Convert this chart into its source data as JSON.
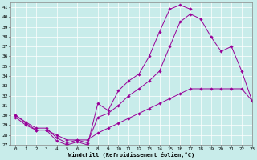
{
  "bg_color": "#c8ecea",
  "line_color": "#990099",
  "grid_color": "#ffffff",
  "xlabel": "Windchill (Refroidissement éolien,°C)",
  "ylim": [
    27,
    41.5
  ],
  "xlim": [
    -0.5,
    23
  ],
  "yticks": [
    27,
    28,
    29,
    30,
    31,
    32,
    33,
    34,
    35,
    36,
    37,
    38,
    39,
    40,
    41
  ],
  "xticks": [
    0,
    1,
    2,
    3,
    4,
    5,
    6,
    7,
    8,
    9,
    10,
    11,
    12,
    13,
    14,
    15,
    16,
    17,
    18,
    19,
    20,
    21,
    22,
    23
  ],
  "line1_x": [
    0,
    1,
    2,
    3,
    4,
    5,
    6,
    7,
    8,
    9,
    10,
    11,
    12,
    13,
    14,
    15,
    16,
    17
  ],
  "line1_y": [
    30.0,
    29.2,
    28.5,
    28.5,
    27.4,
    27.0,
    27.3,
    27.0,
    31.2,
    30.5,
    32.5,
    33.5,
    34.2,
    36.0,
    38.5,
    40.8,
    41.2,
    40.8
  ],
  "line2_x": [
    0,
    1,
    2,
    3,
    4,
    5,
    6,
    7,
    8,
    9,
    10,
    11,
    12,
    13,
    14,
    15,
    16,
    17,
    18,
    19,
    20,
    21,
    22,
    23
  ],
  "line2_y": [
    30.0,
    29.3,
    28.7,
    28.7,
    27.7,
    27.2,
    27.5,
    27.2,
    29.8,
    30.2,
    31.0,
    32.0,
    32.7,
    33.5,
    34.5,
    37.0,
    39.5,
    40.3,
    39.8,
    38.0,
    36.5,
    37.0,
    34.5,
    31.5
  ],
  "line3_x": [
    0,
    1,
    2,
    3,
    4,
    5,
    6,
    7,
    8,
    9,
    10,
    11,
    12,
    13,
    14,
    15,
    16,
    17,
    18,
    19,
    20,
    21,
    22,
    23
  ],
  "line3_y": [
    29.8,
    29.0,
    28.5,
    28.5,
    28.0,
    27.5,
    27.5,
    27.5,
    28.2,
    28.7,
    29.2,
    29.7,
    30.2,
    30.7,
    31.2,
    31.7,
    32.2,
    32.7,
    32.7,
    32.7,
    32.7,
    32.7,
    32.7,
    31.5
  ]
}
